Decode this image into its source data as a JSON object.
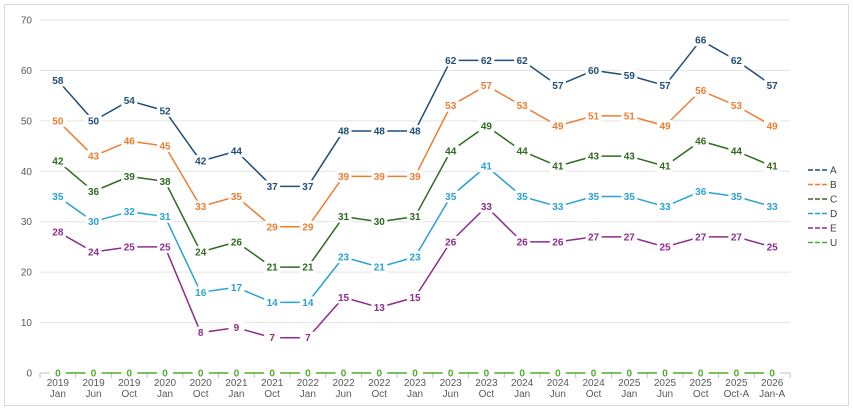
{
  "chart_data": {
    "type": "line",
    "title": "",
    "xlabel": "",
    "ylabel": "",
    "ylim": [
      0,
      70
    ],
    "yticks": [
      0,
      10,
      20,
      30,
      40,
      50,
      60,
      70
    ],
    "grid": true,
    "legend_position": "right",
    "categories": [
      [
        "2019",
        "Jan"
      ],
      [
        "2019",
        "Jun"
      ],
      [
        "2019",
        "Oct"
      ],
      [
        "2020",
        "Jan"
      ],
      [
        "2020",
        "Oct"
      ],
      [
        "2021",
        "Jan"
      ],
      [
        "2021",
        "Oct"
      ],
      [
        "2022",
        "Jan"
      ],
      [
        "2022",
        "Jun"
      ],
      [
        "2022",
        "Oct"
      ],
      [
        "2023",
        "Jan"
      ],
      [
        "2023",
        "Jun"
      ],
      [
        "2023",
        "Oct"
      ],
      [
        "2024",
        "Jan"
      ],
      [
        "2024",
        "Jun"
      ],
      [
        "2024",
        "Oct"
      ],
      [
        "2025",
        "Jan"
      ],
      [
        "2025",
        "Jun"
      ],
      [
        "2025",
        "Oct"
      ],
      [
        "2025",
        "Oct-A"
      ],
      [
        "2026",
        "Jan-A"
      ]
    ],
    "series": [
      {
        "name": "A",
        "color": "#1f4e79",
        "values": [
          58,
          50,
          54,
          52,
          42,
          44,
          37,
          37,
          48,
          48,
          48,
          62,
          62,
          62,
          57,
          60,
          59,
          57,
          66,
          62,
          57
        ]
      },
      {
        "name": "B",
        "color": "#ed7d31",
        "values": [
          50,
          43,
          46,
          45,
          33,
          35,
          29,
          29,
          39,
          39,
          39,
          53,
          57,
          53,
          49,
          51,
          51,
          49,
          56,
          53,
          49
        ]
      },
      {
        "name": "C",
        "color": "#2e6b1f",
        "values": [
          42,
          36,
          39,
          38,
          24,
          26,
          21,
          21,
          31,
          30,
          31,
          44,
          49,
          44,
          41,
          43,
          43,
          41,
          46,
          44,
          41
        ]
      },
      {
        "name": "D",
        "color": "#27a3d3",
        "values": [
          35,
          30,
          32,
          31,
          16,
          17,
          14,
          14,
          23,
          21,
          23,
          35,
          41,
          35,
          33,
          35,
          35,
          33,
          36,
          35,
          33
        ]
      },
      {
        "name": "E",
        "color": "#8e2c8e",
        "values": [
          28,
          24,
          25,
          25,
          8,
          9,
          7,
          7,
          15,
          13,
          15,
          26,
          33,
          26,
          26,
          27,
          27,
          25,
          27,
          27,
          25
        ]
      },
      {
        "name": "U",
        "color": "#4caf2a",
        "values": [
          0,
          0,
          0,
          0,
          0,
          0,
          0,
          0,
          0,
          0,
          0,
          0,
          0,
          0,
          0,
          0,
          0,
          0,
          0,
          0,
          0
        ]
      }
    ]
  }
}
